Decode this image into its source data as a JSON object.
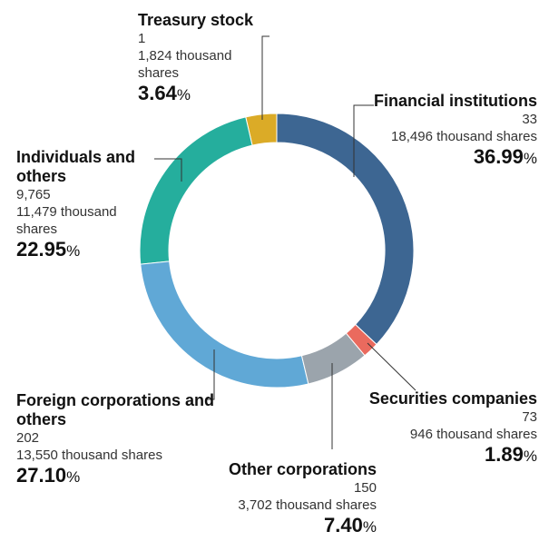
{
  "chart_data": {
    "type": "donut",
    "categories": [
      "Financial institutions",
      "Securities companies",
      "Other corporations",
      "Foreign corporations and others",
      "Individuals and others",
      "Treasury stock"
    ],
    "holders": [
      "33",
      "73",
      "150",
      "202",
      "9,765",
      "1"
    ],
    "shares": [
      "18,496 thousand shares",
      "946 thousand shares",
      "3,702 thousand shares",
      "13,550 thousand shares",
      "11,479 thousand shares",
      "1,824 thousand shares"
    ],
    "values": [
      36.99,
      1.89,
      7.4,
      27.1,
      22.95,
      3.64
    ],
    "value_labels": [
      "36.99",
      "1.89",
      "7.40",
      "27.10",
      "22.95",
      "3.64"
    ],
    "unit": "%",
    "colors": [
      "#3d6692",
      "#ea6a5e",
      "#9ba4ac",
      "#60a8d6",
      "#25ae9d",
      "#dbab27"
    ]
  }
}
